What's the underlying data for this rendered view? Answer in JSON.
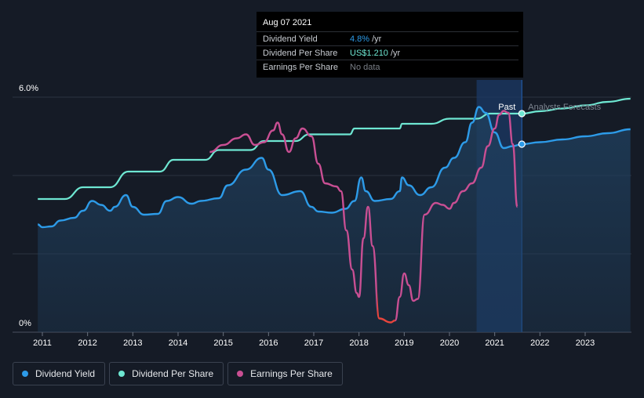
{
  "tooltip": {
    "date": "Aug 07 2021",
    "rows": [
      {
        "name": "Dividend Yield",
        "value": "4.8%",
        "unit": "/yr",
        "color": "#2d9be8"
      },
      {
        "name": "Dividend Per Share",
        "value": "US$1.210",
        "unit": "/yr",
        "color": "#6ee7d2"
      },
      {
        "name": "Earnings Per Share",
        "value": "No data",
        "unit": "",
        "color": "#7a7f87"
      }
    ]
  },
  "legend": [
    {
      "label": "Dividend Yield",
      "color": "#2d9be8"
    },
    {
      "label": "Dividend Per Share",
      "color": "#6ee7d2"
    },
    {
      "label": "Earnings Per Share",
      "color": "#c94f93"
    }
  ],
  "chart_data": {
    "type": "line",
    "x_ticks": [
      "2011",
      "2012",
      "2013",
      "2014",
      "2015",
      "2016",
      "2017",
      "2018",
      "2019",
      "2020",
      "2021",
      "2022",
      "2023"
    ],
    "y_ticks": [
      "0%",
      "6.0%"
    ],
    "ylim": [
      0,
      6.0
    ],
    "xlim": [
      2010.9,
      2024.0
    ],
    "regions": {
      "past_label": "Past",
      "forecast_label": "Analysts Forecasts",
      "divider_x": 2021.6,
      "highlight_from": 2020.6
    },
    "colors": {
      "yield": "#2d9be8",
      "dps": "#6ee7d2",
      "eps": "#c94f93",
      "eps_negative": "#e8453c",
      "area": "#1f3e5c"
    },
    "series": [
      {
        "name": "Dividend Yield",
        "unit": "%",
        "points": [
          [
            2010.9,
            2.75
          ],
          [
            2011.0,
            2.68
          ],
          [
            2011.2,
            2.7
          ],
          [
            2011.4,
            2.85
          ],
          [
            2011.7,
            2.92
          ],
          [
            2011.9,
            3.1
          ],
          [
            2012.1,
            3.35
          ],
          [
            2012.3,
            3.25
          ],
          [
            2012.5,
            3.1
          ],
          [
            2012.6,
            3.2
          ],
          [
            2012.85,
            3.5
          ],
          [
            2013.0,
            3.2
          ],
          [
            2013.25,
            3.0
          ],
          [
            2013.55,
            3.02
          ],
          [
            2013.75,
            3.35
          ],
          [
            2014.0,
            3.45
          ],
          [
            2014.3,
            3.28
          ],
          [
            2014.5,
            3.35
          ],
          [
            2014.9,
            3.42
          ],
          [
            2015.1,
            3.75
          ],
          [
            2015.5,
            4.15
          ],
          [
            2015.85,
            4.45
          ],
          [
            2016.0,
            4.15
          ],
          [
            2016.3,
            3.5
          ],
          [
            2016.7,
            3.6
          ],
          [
            2016.95,
            3.2
          ],
          [
            2017.1,
            3.08
          ],
          [
            2017.4,
            3.05
          ],
          [
            2017.7,
            3.15
          ],
          [
            2017.9,
            3.35
          ],
          [
            2018.05,
            3.95
          ],
          [
            2018.15,
            3.6
          ],
          [
            2018.35,
            3.35
          ],
          [
            2018.7,
            3.4
          ],
          [
            2018.9,
            3.6
          ],
          [
            2018.95,
            3.95
          ],
          [
            2019.1,
            3.75
          ],
          [
            2019.35,
            3.5
          ],
          [
            2019.6,
            3.7
          ],
          [
            2019.9,
            4.2
          ],
          [
            2020.1,
            4.45
          ],
          [
            2020.35,
            4.85
          ],
          [
            2020.5,
            5.35
          ],
          [
            2020.65,
            5.75
          ],
          [
            2020.8,
            5.6
          ],
          [
            2021.0,
            5.1
          ],
          [
            2021.2,
            4.7
          ],
          [
            2021.4,
            4.75
          ],
          [
            2021.6,
            4.8
          ],
          [
            2022.0,
            4.85
          ],
          [
            2022.5,
            4.92
          ],
          [
            2023.0,
            5.0
          ],
          [
            2023.5,
            5.08
          ],
          [
            2024.0,
            5.18
          ]
        ]
      },
      {
        "name": "Dividend Per Share",
        "unit": "US$",
        "points": [
          [
            2010.9,
            3.4
          ],
          [
            2011.5,
            3.4
          ],
          [
            2011.9,
            3.7
          ],
          [
            2012.5,
            3.7
          ],
          [
            2012.9,
            4.1
          ],
          [
            2013.6,
            4.1
          ],
          [
            2013.9,
            4.4
          ],
          [
            2014.6,
            4.4
          ],
          [
            2014.9,
            4.65
          ],
          [
            2015.6,
            4.65
          ],
          [
            2015.9,
            4.88
          ],
          [
            2016.6,
            4.88
          ],
          [
            2016.9,
            5.05
          ],
          [
            2017.8,
            5.05
          ],
          [
            2017.9,
            5.2
          ],
          [
            2018.9,
            5.2
          ],
          [
            2018.95,
            5.32
          ],
          [
            2019.6,
            5.32
          ],
          [
            2020.0,
            5.45
          ],
          [
            2020.6,
            5.45
          ],
          [
            2020.9,
            5.58
          ],
          [
            2021.6,
            5.58
          ],
          [
            2022.0,
            5.64
          ],
          [
            2022.5,
            5.71
          ],
          [
            2023.0,
            5.79
          ],
          [
            2023.5,
            5.88
          ],
          [
            2024.0,
            5.96
          ]
        ]
      },
      {
        "name": "Earnings Per Share",
        "unit": "US$",
        "points": [
          [
            2014.7,
            4.6
          ],
          [
            2015.0,
            4.78
          ],
          [
            2015.3,
            4.95
          ],
          [
            2015.5,
            5.05
          ],
          [
            2015.7,
            4.78
          ],
          [
            2015.9,
            4.85
          ],
          [
            2016.1,
            5.15
          ],
          [
            2016.2,
            5.35
          ],
          [
            2016.3,
            5.05
          ],
          [
            2016.45,
            4.6
          ],
          [
            2016.6,
            4.95
          ],
          [
            2016.75,
            5.2
          ],
          [
            2016.95,
            5.0
          ],
          [
            2017.1,
            4.3
          ],
          [
            2017.25,
            3.8
          ],
          [
            2017.5,
            3.72
          ],
          [
            2017.6,
            3.6
          ],
          [
            2017.72,
            2.6
          ],
          [
            2017.85,
            1.6
          ],
          [
            2017.95,
            1.0
          ],
          [
            2018.0,
            0.9
          ],
          [
            2018.1,
            2.4
          ],
          [
            2018.2,
            3.2
          ],
          [
            2018.3,
            2.2
          ],
          [
            2018.45,
            0.35
          ],
          [
            2018.7,
            0.25
          ],
          [
            2018.8,
            0.3
          ],
          [
            2018.9,
            0.9
          ],
          [
            2019.0,
            1.5
          ],
          [
            2019.1,
            1.2
          ],
          [
            2019.2,
            0.8
          ],
          [
            2019.3,
            0.85
          ],
          [
            2019.45,
            3.0
          ],
          [
            2019.7,
            3.3
          ],
          [
            2019.85,
            3.25
          ],
          [
            2020.0,
            3.15
          ],
          [
            2020.1,
            3.3
          ],
          [
            2020.3,
            3.6
          ],
          [
            2020.5,
            3.8
          ],
          [
            2020.7,
            4.2
          ],
          [
            2020.85,
            4.75
          ],
          [
            2021.0,
            5.2
          ],
          [
            2021.1,
            5.55
          ],
          [
            2021.2,
            5.65
          ],
          [
            2021.3,
            5.6
          ],
          [
            2021.4,
            4.8
          ],
          [
            2021.5,
            3.2
          ]
        ],
        "negative_x_range": [
          2018.4,
          2018.8
        ]
      }
    ],
    "markers": [
      {
        "series": "Dividend Yield",
        "x": 2021.6,
        "y": 4.8
      },
      {
        "series": "Dividend Per Share",
        "x": 2021.6,
        "y": 5.58
      }
    ]
  }
}
